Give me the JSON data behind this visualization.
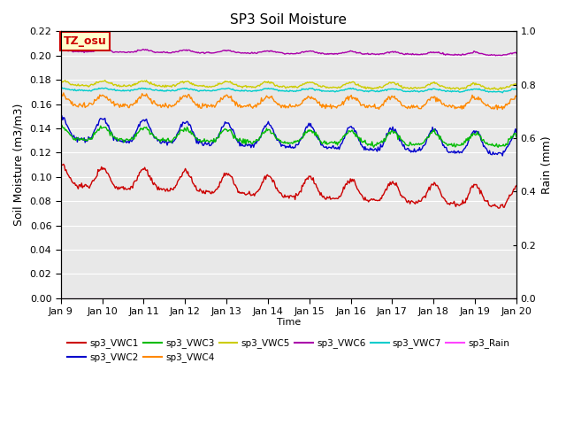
{
  "title": "SP3 Soil Moisture",
  "xlabel": "Time",
  "ylabel_left": "Soil Moisture (m3/m3)",
  "ylabel_right": "Rain (mm)",
  "ylim_left": [
    0.0,
    0.22
  ],
  "ylim_right": [
    0.0,
    1.0
  ],
  "yticks_left": [
    0.0,
    0.02,
    0.04,
    0.06,
    0.08,
    0.1,
    0.12,
    0.14,
    0.16,
    0.18,
    0.2,
    0.22
  ],
  "yticks_right": [
    0.0,
    0.2,
    0.4,
    0.6,
    0.8,
    1.0
  ],
  "xtick_labels": [
    "Jan 9",
    "Jan 10",
    "Jan 11",
    "Jan 12",
    "Jan 13",
    "Jan 14",
    "Jan 15",
    "Jan 16",
    "Jan 17",
    "Jan 18",
    "Jan 19",
    "Jan 20"
  ],
  "bg_color": "#e8e8e8",
  "series": {
    "sp3_VWC1": {
      "color": "#cc0000",
      "base": 0.099,
      "amplitude": 0.008,
      "trend": -0.018,
      "phase": 1.5,
      "noise": 0.001
    },
    "sp3_VWC2": {
      "color": "#0000cc",
      "base": 0.138,
      "amplitude": 0.009,
      "trend": -0.013,
      "phase": 1.5,
      "noise": 0.001
    },
    "sp3_VWC3": {
      "color": "#00bb00",
      "base": 0.135,
      "amplitude": 0.005,
      "trend": -0.006,
      "phase": 1.5,
      "noise": 0.001
    },
    "sp3_VWC4": {
      "color": "#ff8800",
      "base": 0.162,
      "amplitude": 0.004,
      "trend": -0.002,
      "phase": 1.5,
      "noise": 0.001
    },
    "sp3_VWC5": {
      "color": "#cccc00",
      "base": 0.177,
      "amplitude": 0.002,
      "trend": -0.003,
      "phase": 1.5,
      "noise": 0.0005
    },
    "sp3_VWC6": {
      "color": "#aa00aa",
      "base": 0.204,
      "amplitude": 0.001,
      "trend": -0.003,
      "phase": 1.5,
      "noise": 0.0003
    },
    "sp3_VWC7": {
      "color": "#00cccc",
      "base": 0.172,
      "amplitude": 0.001,
      "trend": -0.001,
      "phase": 1.5,
      "noise": 0.0003
    },
    "sp3_Rain": {
      "color": "#ff44ff",
      "base": 0.0,
      "amplitude": 0.0,
      "trend": 0.0,
      "phase": 0.0,
      "noise": 0.0
    }
  },
  "tz_label": "TZ_osu",
  "tz_bg": "#ffffcc",
  "tz_border": "#cc0000",
  "legend_order": [
    "sp3_VWC1",
    "sp3_VWC2",
    "sp3_VWC3",
    "sp3_VWC4",
    "sp3_VWC5",
    "sp3_VWC6",
    "sp3_VWC7",
    "sp3_Rain"
  ]
}
